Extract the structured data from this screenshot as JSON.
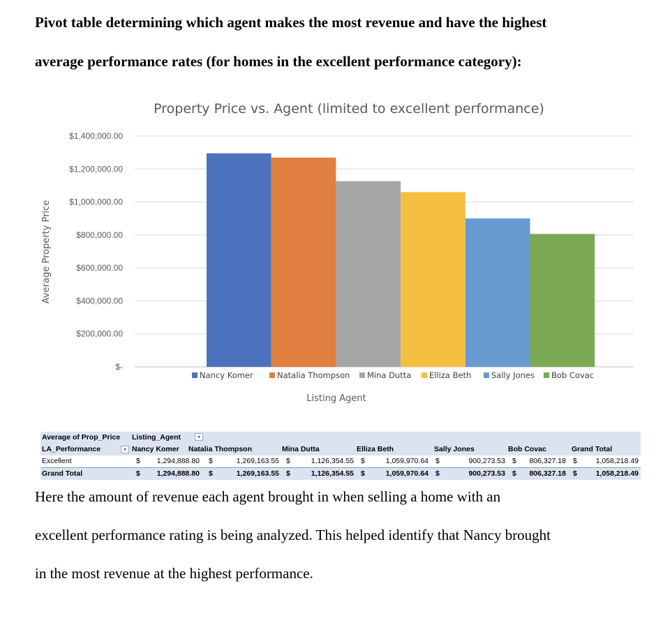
{
  "heading": {
    "line1": "Pivot table determining which agent makes the most revenue and have the highest",
    "line2": "average performance rates (for homes in the excellent performance category):"
  },
  "chart_data": {
    "type": "bar",
    "title": "Property Price vs. Agent (limited to excellent performance)",
    "xlabel": "Listing Agent",
    "ylabel": "Average Property Price",
    "ylim": [
      0,
      1400000
    ],
    "yticks": [
      0,
      200000,
      400000,
      600000,
      800000,
      1000000,
      1200000,
      1400000
    ],
    "ytick_labels": [
      "$-",
      "$200,000.00",
      "$400,000.00",
      "$600,000.00",
      "$800,000.00",
      "$1,000,000.00",
      "$1,200,000.00",
      "$1,400,000.00"
    ],
    "grid": true,
    "legend": "bottom",
    "series": [
      {
        "name": "Nancy Komer",
        "value": 1294888.8,
        "color": "#4e73be"
      },
      {
        "name": "Natalia Thompson",
        "value": 1269163.55,
        "color": "#e07f3f"
      },
      {
        "name": "Mina Dutta",
        "value": 1126354.55,
        "color": "#a6a6a6"
      },
      {
        "name": "Elliza Beth",
        "value": 1059970.64,
        "color": "#f5bf41"
      },
      {
        "name": "Sally Jones",
        "value": 900273.53,
        "color": "#669ad1"
      },
      {
        "name": "Bob Covac",
        "value": 806327.18,
        "color": "#7ba953"
      }
    ]
  },
  "pivot": {
    "corner_label": "Average of Prop_Price",
    "col_field": "Listing_Agent",
    "row_field": "LA_Performance",
    "columns": [
      "Nancy Komer",
      "Natalia Thompson",
      "Mina Dutta",
      "Elliza Beth",
      "Sally Jones",
      "Bob Covac",
      "Grand Total"
    ],
    "rows": [
      {
        "label": "Excellent",
        "values": [
          "1,294,888.80",
          "1,269,163.55",
          "1,126,354.55",
          "1,059,970.64",
          "900,273.53",
          "806,327.18",
          "1,058,218.49"
        ]
      },
      {
        "label": "Grand Total",
        "values": [
          "1,294,888.80",
          "1,269,163.55",
          "1,126,354.55",
          "1,059,970.64",
          "900,273.53",
          "806,327.18",
          "1,058,218.49"
        ]
      }
    ],
    "currency": "$",
    "filter_icon": "dropdown-filter-icon",
    "sort_icon": "sort-filter-icon"
  },
  "paragraph": {
    "line1": "Here the amount of revenue each agent brought in when selling a home with an",
    "line2": "excellent performance rating is being analyzed. This helped identify that Nancy brought",
    "line3": "in the most revenue at the highest performance."
  }
}
